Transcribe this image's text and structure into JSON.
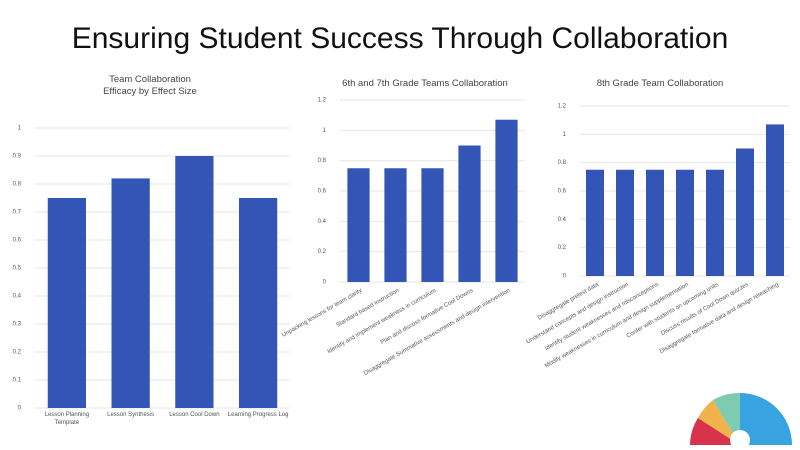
{
  "title": "Ensuring Student Success Through Collaboration",
  "chart_data": [
    {
      "type": "bar",
      "title": "Team Collaboration Efficacy by Effect Size",
      "categories": [
        "Lesson Planning Template",
        "Lesson Synthesis",
        "Lesson Cool Down",
        "Learning Progress Log"
      ],
      "values": [
        0.75,
        0.82,
        0.9,
        0.75
      ],
      "color": "#3355b5",
      "ylim": [
        0,
        1
      ],
      "yticks": [
        0,
        0.1,
        0.2,
        0.3,
        0.4,
        0.5,
        0.6,
        0.7,
        0.8,
        0.9,
        1
      ]
    },
    {
      "type": "bar",
      "title": "6th and 7th Grade Teams Collaboration",
      "categories": [
        "Unpacking lessons for team clarity",
        "Standard based instruction",
        "Identify and implement weakness in curriculum",
        "Plan and discuss formative Cool Downs",
        "Disaggregate Summative assessments and design intervention"
      ],
      "values": [
        0.75,
        0.75,
        0.75,
        0.9,
        1.07
      ],
      "color": "#3355b5",
      "ylim": [
        0,
        1.2
      ],
      "yticks": [
        0,
        0.2,
        0.4,
        0.6,
        0.8,
        1,
        1.2
      ]
    },
    {
      "type": "bar",
      "title": "8th Grade Team Collaboration",
      "categories": [
        "Disaggregate pretest data",
        "Understand concepts and design instruction",
        "Identify student weaknesses and misconceptions",
        "Modify weaknesses in curriculum and design supplementation",
        "Confer with students on upcoming units",
        "Discuss results of Cool Down quizzes",
        "Disaggregate formative data and design reteaching"
      ],
      "values": [
        0.75,
        0.75,
        0.75,
        0.75,
        0.75,
        0.9,
        1.07
      ],
      "color": "#3355b5",
      "ylim": [
        0,
        1.2
      ],
      "yticks": [
        0,
        0.2,
        0.4,
        0.6,
        0.8,
        1,
        1.2
      ]
    }
  ]
}
